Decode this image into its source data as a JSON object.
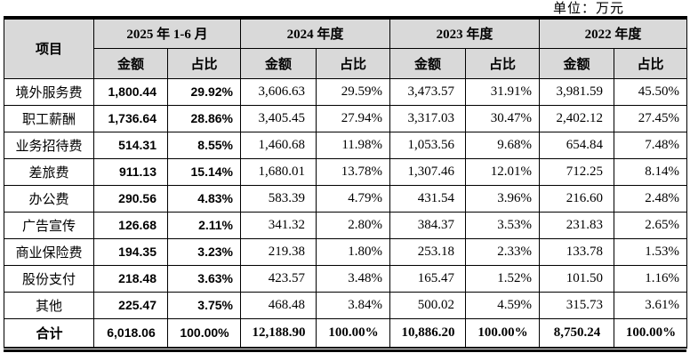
{
  "unit_label": "单位：万元",
  "colors": {
    "header_bg": "#d9d9d9",
    "border": "#000000",
    "text": "#000000"
  },
  "table": {
    "item_header": "项目",
    "col_groups": [
      {
        "label": "2025 年 1-6 月",
        "sub": [
          "金额",
          "占比"
        ]
      },
      {
        "label": "2024 年度",
        "sub": [
          "金额",
          "占比"
        ]
      },
      {
        "label": "2023 年度",
        "sub": [
          "金额",
          "占比"
        ]
      },
      {
        "label": "2022 年度",
        "sub": [
          "金额",
          "占比"
        ]
      }
    ],
    "rows": [
      {
        "label": "境外服务费",
        "values": [
          "1,800.44",
          "29.92%",
          "3,606.63",
          "29.59%",
          "3,473.57",
          "31.91%",
          "3,981.59",
          "45.50%"
        ]
      },
      {
        "label": "职工薪酬",
        "values": [
          "1,736.64",
          "28.86%",
          "3,405.45",
          "27.94%",
          "3,317.03",
          "30.47%",
          "2,402.12",
          "27.45%"
        ]
      },
      {
        "label": "业务招待费",
        "values": [
          "514.31",
          "8.55%",
          "1,460.68",
          "11.98%",
          "1,053.56",
          "9.68%",
          "654.84",
          "7.48%"
        ]
      },
      {
        "label": "差旅费",
        "values": [
          "911.13",
          "15.14%",
          "1,680.01",
          "13.78%",
          "1,307.46",
          "12.01%",
          "712.25",
          "8.14%"
        ]
      },
      {
        "label": "办公费",
        "values": [
          "290.56",
          "4.83%",
          "583.39",
          "4.79%",
          "431.54",
          "3.96%",
          "216.60",
          "2.48%"
        ]
      },
      {
        "label": "广告宣传",
        "values": [
          "126.68",
          "2.11%",
          "341.32",
          "2.80%",
          "384.37",
          "3.53%",
          "231.83",
          "2.65%"
        ]
      },
      {
        "label": "商业保险费",
        "values": [
          "194.35",
          "3.23%",
          "219.38",
          "1.80%",
          "253.18",
          "2.33%",
          "133.78",
          "1.53%"
        ]
      },
      {
        "label": "股份支付",
        "values": [
          "218.48",
          "3.63%",
          "423.57",
          "3.48%",
          "165.47",
          "1.52%",
          "101.50",
          "1.16%"
        ]
      },
      {
        "label": "其他",
        "values": [
          "225.47",
          "3.75%",
          "468.48",
          "3.84%",
          "500.02",
          "4.59%",
          "315.73",
          "3.61%"
        ]
      }
    ],
    "total_row": {
      "label": "合计",
      "values": [
        "6,018.06",
        "100.00%",
        "12,188.90",
        "100.00%",
        "10,886.20",
        "100.00%",
        "8,750.24",
        "100.00%"
      ]
    }
  }
}
